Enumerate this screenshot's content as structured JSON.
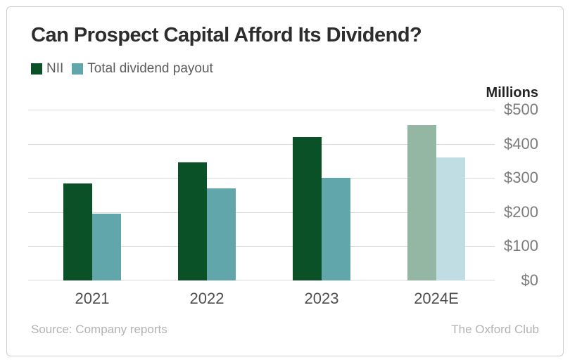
{
  "chart_data": {
    "type": "bar",
    "title": "Can Prospect Capital Afford Its Dividend?",
    "unit_label": "Millions",
    "categories": [
      "2021",
      "2022",
      "2023",
      "2024E"
    ],
    "series": [
      {
        "name": "NII",
        "key": "nii",
        "values": [
          285,
          345,
          420,
          455
        ],
        "colors": [
          "#0b5128",
          "#0b5128",
          "#0b5128",
          "#94b7a3"
        ]
      },
      {
        "name": "Total dividend payout",
        "key": "total-dividend-payout",
        "values": [
          195,
          270,
          300,
          360
        ],
        "colors": [
          "#61a6ab",
          "#61a6ab",
          "#61a6ab",
          "#bfdde2"
        ]
      }
    ],
    "ylim": [
      0,
      500
    ],
    "yticks": [
      {
        "label": "$500",
        "value": 500
      },
      {
        "label": "$400",
        "value": 400
      },
      {
        "label": "$300",
        "value": 300
      },
      {
        "label": "$200",
        "value": 200
      },
      {
        "label": "$100",
        "value": 100
      },
      {
        "label": "$0",
        "value": 0
      }
    ],
    "grid": "horizontal",
    "legend_position": "top-left",
    "yaxis_side": "right"
  },
  "footer": {
    "source": "Source: Company reports",
    "attribution": "The Oxford Club"
  }
}
